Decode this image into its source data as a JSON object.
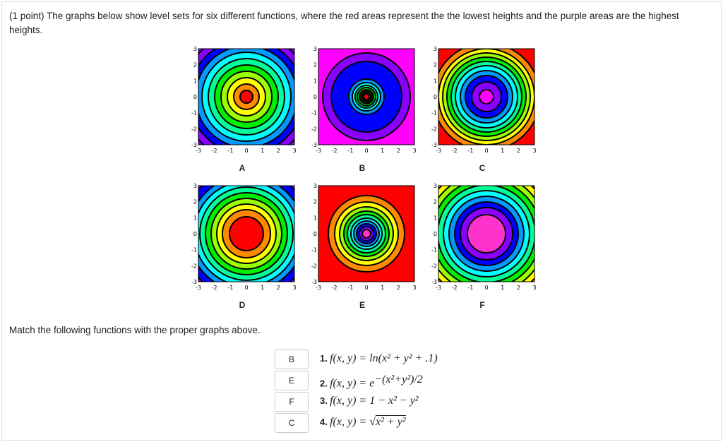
{
  "intro": "(1 point) The graphs below show level sets for six different functions, where the red areas represent the the lowest heights and the purple areas are the highest heights.",
  "axis_ticks": [
    -3,
    -2,
    -1,
    0,
    1,
    2,
    3
  ],
  "plots": [
    "A",
    "B",
    "C",
    "D",
    "E",
    "F"
  ],
  "prompt": "Match the following functions with the proper graphs above.",
  "items": [
    {
      "answer": "B",
      "number": "1.",
      "formula": "f(x, y) = ln(x² + y² + .1)"
    },
    {
      "answer": "E",
      "number": "2.",
      "formula": "f(x, y) = e",
      "exponent": "−(x²+y²)/2"
    },
    {
      "answer": "F",
      "number": "3.",
      "formula": "f(x, y) = 1 − x² − y²"
    },
    {
      "answer": "C",
      "number": "4.",
      "formula": "f(x, y) = √",
      "radicand": "x² + y²"
    }
  ]
}
